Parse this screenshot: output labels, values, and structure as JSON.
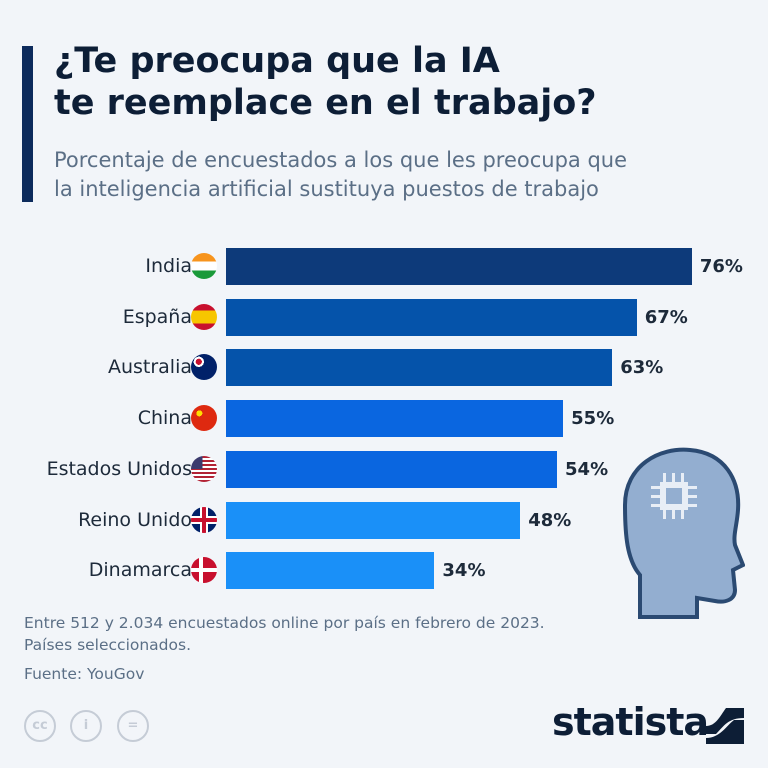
{
  "title_lines": [
    "¿Te preocupa que la IA",
    "te reemplace en el trabajo?"
  ],
  "subtitle_lines": [
    "Porcentaje de encuestados a los que les preocupa que",
    "la inteligencia artificial sustituya puestos de trabajo"
  ],
  "chart_data": {
    "type": "bar",
    "orientation": "horizontal",
    "categories": [
      "India",
      "España",
      "Australia",
      "China",
      "Estados Unidos",
      "Reino Unido",
      "Dinamarca"
    ],
    "values": [
      76,
      67,
      63,
      55,
      54,
      48,
      34
    ],
    "data_labels": [
      "76%",
      "67%",
      "63%",
      "55%",
      "54%",
      "48%",
      "34%"
    ],
    "unit": "%",
    "bar_colors": [
      "#0d3a7a",
      "#0553aa",
      "#0553aa",
      "#0a66e0",
      "#0a66e0",
      "#1a90f8",
      "#1a90f8"
    ],
    "flag_icons": [
      "india-flag-icon",
      "spain-flag-icon",
      "australia-flag-icon",
      "china-flag-icon",
      "usa-flag-icon",
      "uk-flag-icon",
      "denmark-flag-icon"
    ],
    "grid": false,
    "legend": "none"
  },
  "notes": [
    "Entre 512 y 2.034 encuestados online por país en febrero de 2023.",
    "Países seleccionados."
  ],
  "source": "Fuente: YouGov",
  "license_icons": [
    "cc",
    "by",
    "nd"
  ],
  "logo": "statista",
  "illustration": "head-with-chip-icon"
}
